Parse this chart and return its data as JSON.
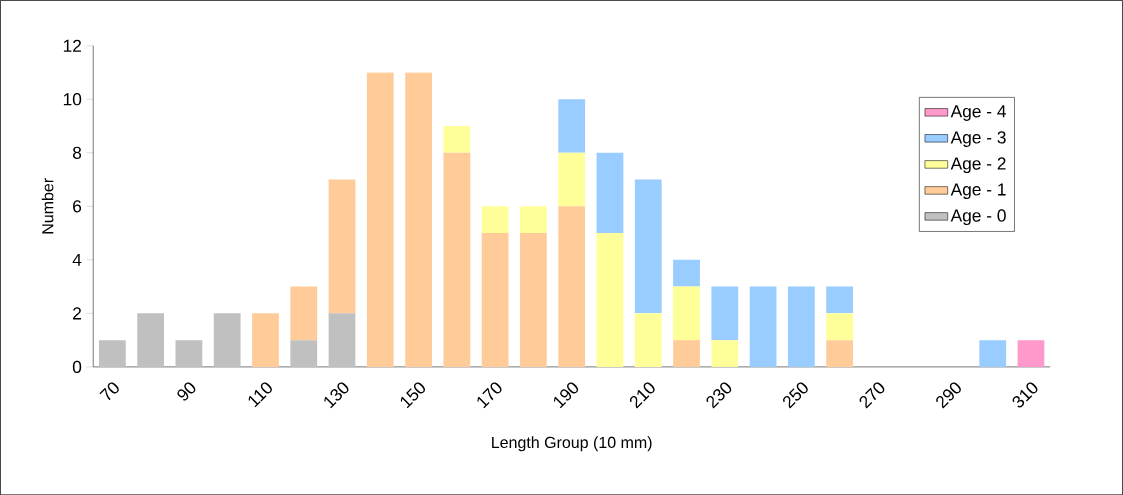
{
  "chart_data": {
    "type": "bar",
    "stacked": true,
    "xlabel": "Length Group (10 mm)",
    "ylabel": "Number",
    "categories": [
      "70",
      null,
      "90",
      null,
      "110",
      null,
      "130",
      null,
      "150",
      null,
      "170",
      null,
      "190",
      null,
      "210",
      null,
      "230",
      null,
      "250",
      null,
      "270",
      null,
      "290",
      null,
      "310"
    ],
    "series": [
      {
        "name": "Age - 0",
        "color": "#c0c0c0",
        "values": [
          1,
          2,
          1,
          2,
          0,
          1,
          2,
          0,
          0,
          0,
          0,
          0,
          0,
          0,
          0,
          0,
          0,
          0,
          0,
          0,
          0,
          0,
          0,
          0,
          0
        ]
      },
      {
        "name": "Age - 1",
        "color": "#ffcc99",
        "values": [
          0,
          0,
          0,
          0,
          2,
          2,
          5,
          11,
          11,
          8,
          5,
          5,
          6,
          0,
          0,
          1,
          0,
          0,
          0,
          1,
          0,
          0,
          0,
          0,
          0
        ]
      },
      {
        "name": "Age - 2",
        "color": "#ffff99",
        "values": [
          0,
          0,
          0,
          0,
          0,
          0,
          0,
          0,
          0,
          1,
          1,
          1,
          2,
          5,
          2,
          2,
          1,
          0,
          0,
          1,
          0,
          0,
          0,
          0,
          0
        ]
      },
      {
        "name": "Age - 3",
        "color": "#99ccff",
        "values": [
          0,
          0,
          0,
          0,
          0,
          0,
          0,
          0,
          0,
          0,
          0,
          0,
          2,
          3,
          5,
          1,
          2,
          3,
          3,
          1,
          0,
          0,
          0,
          1,
          0
        ]
      },
      {
        "name": "Age - 4",
        "color": "#ff99cc",
        "values": [
          0,
          0,
          0,
          0,
          0,
          0,
          0,
          0,
          0,
          0,
          0,
          0,
          0,
          0,
          0,
          0,
          0,
          0,
          0,
          0,
          0,
          0,
          0,
          0,
          1
        ]
      }
    ],
    "ylim": [
      0,
      12
    ],
    "yticks": [
      0,
      2,
      4,
      6,
      8,
      10,
      12
    ],
    "legend": "right"
  }
}
